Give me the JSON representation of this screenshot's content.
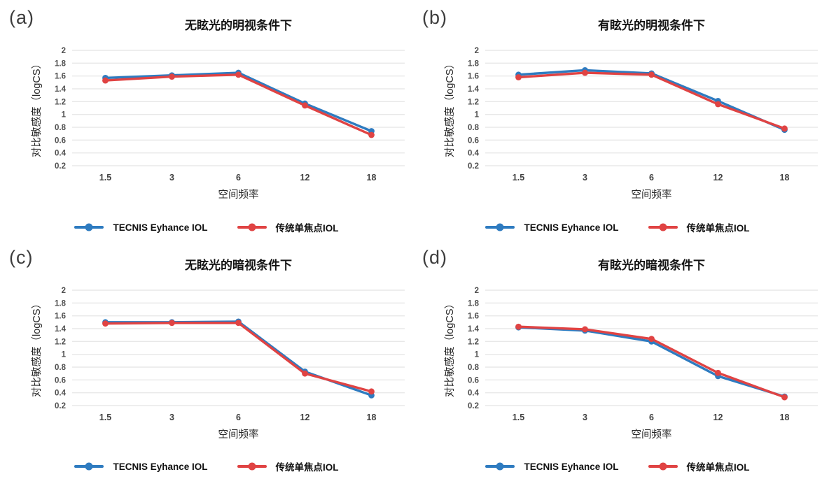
{
  "colors": {
    "series_blue": "#2E7BC0",
    "series_red": "#E04343",
    "gridline": "#e8e8e8",
    "tick_text": "#4f4f4f",
    "title_text": "#141414",
    "panel_label_text": "#3d3d3d"
  },
  "chart_data": [
    {
      "id": "a",
      "panel_label": "(a)",
      "type": "line",
      "title": "无眩光的明视条件下",
      "xlabel": "空间频率",
      "ylabel": "对比敏感度（logCS）",
      "categories": [
        "1.5",
        "3",
        "6",
        "12",
        "18"
      ],
      "ylim": [
        0.2,
        2
      ],
      "yticks": [
        "2",
        "1.8",
        "1.6",
        "1.4",
        "1.2",
        "1",
        "0.8",
        "0.6",
        "0.4",
        "0.2"
      ],
      "grid": "horizontal",
      "legend_position": "bottom",
      "series": [
        {
          "name": "TECNIS Eyhance IOL",
          "color_key": "series_blue",
          "values": [
            1.57,
            1.61,
            1.65,
            1.17,
            0.74
          ]
        },
        {
          "name": "传统单焦点IOL",
          "color_key": "series_red",
          "values": [
            1.53,
            1.59,
            1.62,
            1.14,
            0.68
          ]
        }
      ]
    },
    {
      "id": "b",
      "panel_label": "(b)",
      "type": "line",
      "title": "有眩光的明视条件下",
      "xlabel": "空间频率",
      "ylabel": "对比敏感度（logCS）",
      "categories": [
        "1.5",
        "3",
        "6",
        "12",
        "18"
      ],
      "ylim": [
        0.2,
        2
      ],
      "yticks": [
        "2",
        "1.8",
        "1.6",
        "1.4",
        "1.2",
        "1",
        "0.8",
        "0.6",
        "0.4",
        "0.2"
      ],
      "grid": "horizontal",
      "legend_position": "bottom",
      "series": [
        {
          "name": "TECNIS Eyhance IOL",
          "color_key": "series_blue",
          "values": [
            1.62,
            1.69,
            1.64,
            1.21,
            0.76
          ]
        },
        {
          "name": "传统单焦点IOL",
          "color_key": "series_red",
          "values": [
            1.58,
            1.65,
            1.62,
            1.16,
            0.78
          ]
        }
      ]
    },
    {
      "id": "c",
      "panel_label": "(c)",
      "type": "line",
      "title": "无眩光的暗视条件下",
      "xlabel": "空间频率",
      "ylabel": "对比敏感度（logCS）",
      "categories": [
        "1.5",
        "3",
        "6",
        "12",
        "18"
      ],
      "ylim": [
        0.2,
        2
      ],
      "yticks": [
        "2",
        "1.8",
        "1.6",
        "1.4",
        "1.2",
        "1",
        "0.8",
        "0.6",
        "0.4",
        "0.2"
      ],
      "grid": "horizontal",
      "legend_position": "bottom",
      "series": [
        {
          "name": "TECNIS Eyhance IOL",
          "color_key": "series_blue",
          "values": [
            1.5,
            1.5,
            1.51,
            0.73,
            0.36
          ]
        },
        {
          "name": "传统单焦点IOL",
          "color_key": "series_red",
          "values": [
            1.48,
            1.49,
            1.49,
            0.7,
            0.42
          ]
        }
      ]
    },
    {
      "id": "d",
      "panel_label": "(d)",
      "type": "line",
      "title": "有眩光的暗视条件下",
      "xlabel": "空间频率",
      "ylabel": "对比敏感度（logCS）",
      "categories": [
        "1.5",
        "3",
        "6",
        "12",
        "18"
      ],
      "ylim": [
        0.2,
        2
      ],
      "yticks": [
        "2",
        "1.8",
        "1.6",
        "1.4",
        "1.2",
        "1",
        "0.8",
        "0.6",
        "0.4",
        "0.2"
      ],
      "grid": "horizontal",
      "legend_position": "bottom",
      "series": [
        {
          "name": "TECNIS Eyhance IOL",
          "color_key": "series_blue",
          "values": [
            1.42,
            1.37,
            1.2,
            0.66,
            0.34
          ]
        },
        {
          "name": "传统单焦点IOL",
          "color_key": "series_red",
          "values": [
            1.43,
            1.39,
            1.24,
            0.71,
            0.33
          ]
        }
      ]
    }
  ]
}
